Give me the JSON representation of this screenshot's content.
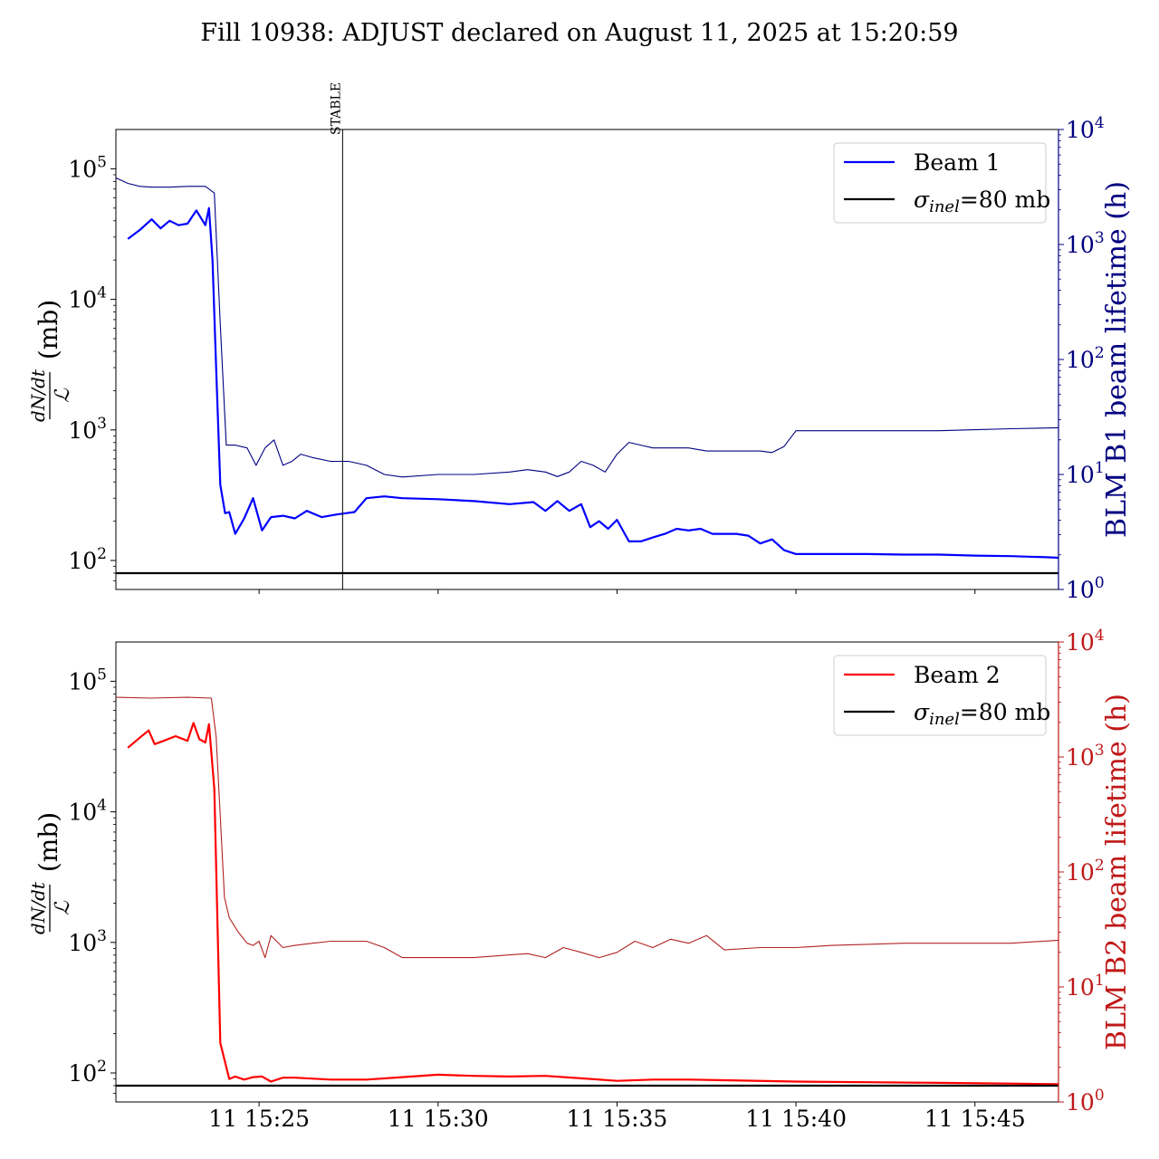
{
  "figure": {
    "title": "Fill 10938: ADJUST declared on August 11, 2025 at 15:20:59"
  },
  "colors": {
    "beam1": "#0000ff",
    "beam1_blm": "#000080",
    "beam2": "#ff0000",
    "beam2_blm": "#b22222",
    "beam2_axis": "#c01818",
    "reference": "#000000"
  },
  "chart_data": [
    {
      "type": "line",
      "panel": "top",
      "xlabel": "",
      "ylabel_left": "dN/dt / L (mb)",
      "ylabel_right": "BLM B1 beam lifetime (h)",
      "x_ticks": [],
      "y_left_scale": "log",
      "y_left_ylim": [
        60,
        200000
      ],
      "y_left_ticks": [
        {
          "value": 100,
          "base": "10",
          "exp": "2"
        },
        {
          "value": 1000,
          "base": "10",
          "exp": "3"
        },
        {
          "value": 10000,
          "base": "10",
          "exp": "4"
        },
        {
          "value": 100000,
          "base": "10",
          "exp": "5"
        }
      ],
      "y_right_scale": "log",
      "y_right_ylim": [
        1,
        10000
      ],
      "y_right_ticks": [
        {
          "value": 1,
          "base": "10",
          "exp": "0"
        },
        {
          "value": 10,
          "base": "10",
          "exp": "1"
        },
        {
          "value": 100,
          "base": "10",
          "exp": "2"
        },
        {
          "value": 1000,
          "base": "10",
          "exp": "3"
        },
        {
          "value": 10000,
          "base": "10",
          "exp": "4"
        }
      ],
      "legend_position": "top-right",
      "legend": [
        {
          "label": "Beam 1",
          "series": "beam1"
        },
        {
          "label_base": "σ",
          "label_sub": "inel",
          "label_rest": "=80 mb",
          "series": "reference"
        }
      ],
      "annotation": {
        "label": "STABLE",
        "x": "2025-08-11 15:27:20"
      },
      "reference_line": {
        "y": 80,
        "label": "σinel=80 mb"
      },
      "series": [
        {
          "id": "beam1",
          "name": "Beam 1",
          "axis": "left",
          "x": [
            "2025-08-11 15:21:20",
            "2025-08-11 15:21:40",
            "2025-08-11 15:22:00",
            "2025-08-11 15:22:15",
            "2025-08-11 15:22:30",
            "2025-08-11 15:22:45",
            "2025-08-11 15:23:00",
            "2025-08-11 15:23:15",
            "2025-08-11 15:23:30",
            "2025-08-11 15:23:36",
            "2025-08-11 15:23:42",
            "2025-08-11 15:23:48",
            "2025-08-11 15:23:55",
            "2025-08-11 15:24:03",
            "2025-08-11 15:24:10",
            "2025-08-11 15:24:20",
            "2025-08-11 15:24:35",
            "2025-08-11 15:24:50",
            "2025-08-11 15:25:05",
            "2025-08-11 15:25:20",
            "2025-08-11 15:25:40",
            "2025-08-11 15:26:00",
            "2025-08-11 15:26:20",
            "2025-08-11 15:26:45",
            "2025-08-11 15:27:10",
            "2025-08-11 15:27:40",
            "2025-08-11 15:28:00",
            "2025-08-11 15:28:30",
            "2025-08-11 15:29:00",
            "2025-08-11 15:30:00",
            "2025-08-11 15:31:00",
            "2025-08-11 15:32:00",
            "2025-08-11 15:32:40",
            "2025-08-11 15:33:00",
            "2025-08-11 15:33:20",
            "2025-08-11 15:33:40",
            "2025-08-11 15:34:00",
            "2025-08-11 15:34:15",
            "2025-08-11 15:34:30",
            "2025-08-11 15:34:45",
            "2025-08-11 15:35:00",
            "2025-08-11 15:35:20",
            "2025-08-11 15:35:40",
            "2025-08-11 15:36:00",
            "2025-08-11 15:36:20",
            "2025-08-11 15:36:40",
            "2025-08-11 15:37:00",
            "2025-08-11 15:37:20",
            "2025-08-11 15:37:40",
            "2025-08-11 15:38:00",
            "2025-08-11 15:38:20",
            "2025-08-11 15:38:40",
            "2025-08-11 15:39:00",
            "2025-08-11 15:39:20",
            "2025-08-11 15:39:40",
            "2025-08-11 15:40:00",
            "2025-08-11 15:41:00",
            "2025-08-11 15:42:00",
            "2025-08-11 15:43:00",
            "2025-08-11 15:44:00",
            "2025-08-11 15:45:00",
            "2025-08-11 15:46:00",
            "2025-08-11 15:47:00",
            "2025-08-11 15:47:20"
          ],
          "y": [
            29000,
            34000,
            41000,
            35000,
            40000,
            37000,
            38000,
            48000,
            37000,
            50000,
            20000,
            3000,
            380,
            230,
            235,
            160,
            210,
            300,
            170,
            215,
            220,
            210,
            240,
            215,
            225,
            235,
            300,
            310,
            300,
            295,
            285,
            270,
            280,
            240,
            285,
            240,
            270,
            180,
            200,
            175,
            205,
            140,
            140,
            150,
            160,
            175,
            170,
            175,
            160,
            160,
            160,
            155,
            135,
            145,
            120,
            112,
            112,
            112,
            111,
            111,
            109,
            108,
            106,
            105
          ]
        },
        {
          "id": "beam1_blm",
          "name": "BLM B1 beam lifetime (h)",
          "axis": "right",
          "x": [
            "2025-08-11 15:21:00",
            "2025-08-11 15:21:20",
            "2025-08-11 15:21:40",
            "2025-08-11 15:22:00",
            "2025-08-11 15:22:30",
            "2025-08-11 15:23:00",
            "2025-08-11 15:23:30",
            "2025-08-11 15:23:45",
            "2025-08-11 15:23:55",
            "2025-08-11 15:24:05",
            "2025-08-11 15:24:20",
            "2025-08-11 15:24:40",
            "2025-08-11 15:24:55",
            "2025-08-11 15:25:10",
            "2025-08-11 15:25:25",
            "2025-08-11 15:25:40",
            "2025-08-11 15:25:55",
            "2025-08-11 15:26:10",
            "2025-08-11 15:26:30",
            "2025-08-11 15:27:00",
            "2025-08-11 15:27:30",
            "2025-08-11 15:28:00",
            "2025-08-11 15:28:30",
            "2025-08-11 15:29:00",
            "2025-08-11 15:30:00",
            "2025-08-11 15:31:00",
            "2025-08-11 15:32:00",
            "2025-08-11 15:32:30",
            "2025-08-11 15:33:00",
            "2025-08-11 15:33:20",
            "2025-08-11 15:33:40",
            "2025-08-11 15:34:00",
            "2025-08-11 15:34:20",
            "2025-08-11 15:34:40",
            "2025-08-11 15:35:00",
            "2025-08-11 15:35:20",
            "2025-08-11 15:35:40",
            "2025-08-11 15:36:00",
            "2025-08-11 15:36:30",
            "2025-08-11 15:37:00",
            "2025-08-11 15:37:30",
            "2025-08-11 15:38:00",
            "2025-08-11 15:38:30",
            "2025-08-11 15:39:00",
            "2025-08-11 15:39:20",
            "2025-08-11 15:39:40",
            "2025-08-11 15:40:00",
            "2025-08-11 15:41:00",
            "2025-08-11 15:42:00",
            "2025-08-11 15:43:00",
            "2025-08-11 15:44:00",
            "2025-08-11 15:45:00",
            "2025-08-11 15:46:00",
            "2025-08-11 15:47:20"
          ],
          "y": [
            3800,
            3400,
            3200,
            3150,
            3150,
            3200,
            3200,
            2800,
            200,
            18,
            18,
            17,
            12,
            17,
            20,
            12,
            13,
            15,
            14,
            13,
            13,
            12,
            10,
            9.5,
            10,
            10,
            10.5,
            11,
            10.5,
            9.6,
            10.5,
            13,
            12,
            10.5,
            15,
            19,
            18,
            17,
            17,
            17,
            16,
            16,
            16,
            16,
            15.5,
            17.5,
            24,
            24,
            24,
            24,
            24,
            24.5,
            25,
            25.5
          ]
        },
        {
          "id": "reference",
          "name": "σinel=80 mb",
          "axis": "left",
          "x": [
            "2025-08-11 15:21:00",
            "2025-08-11 15:47:20"
          ],
          "y": [
            80,
            80
          ]
        }
      ]
    },
    {
      "type": "line",
      "panel": "bottom",
      "xlabel": "",
      "ylabel_left": "dN/dt / L (mb)",
      "ylabel_right": "BLM B2 beam lifetime (h)",
      "x_ticks": [
        "11 15:25",
        "11 15:30",
        "11 15:35",
        "11 15:40",
        "11 15:45"
      ],
      "y_left_scale": "log",
      "y_left_ylim": [
        60,
        200000
      ],
      "y_left_ticks": [
        {
          "value": 100,
          "base": "10",
          "exp": "2"
        },
        {
          "value": 1000,
          "base": "10",
          "exp": "3"
        },
        {
          "value": 10000,
          "base": "10",
          "exp": "4"
        },
        {
          "value": 100000,
          "base": "10",
          "exp": "5"
        }
      ],
      "y_right_scale": "log",
      "y_right_ylim": [
        1,
        10000
      ],
      "y_right_ticks": [
        {
          "value": 1,
          "base": "10",
          "exp": "0"
        },
        {
          "value": 10,
          "base": "10",
          "exp": "1"
        },
        {
          "value": 100,
          "base": "10",
          "exp": "2"
        },
        {
          "value": 1000,
          "base": "10",
          "exp": "3"
        },
        {
          "value": 10000,
          "base": "10",
          "exp": "4"
        }
      ],
      "legend_position": "top-right",
      "legend": [
        {
          "label": "Beam 2",
          "series": "beam2"
        },
        {
          "label_base": "σ",
          "label_sub": "inel",
          "label_rest": "=80 mb",
          "series": "reference"
        }
      ],
      "reference_line": {
        "y": 80,
        "label": "σinel=80 mb"
      },
      "series": [
        {
          "id": "beam2",
          "name": "Beam 2",
          "axis": "left",
          "x": [
            "2025-08-11 15:21:20",
            "2025-08-11 15:21:40",
            "2025-08-11 15:21:55",
            "2025-08-11 15:22:05",
            "2025-08-11 15:22:20",
            "2025-08-11 15:22:40",
            "2025-08-11 15:23:00",
            "2025-08-11 15:23:10",
            "2025-08-11 15:23:20",
            "2025-08-11 15:23:30",
            "2025-08-11 15:23:36",
            "2025-08-11 15:23:45",
            "2025-08-11 15:23:55",
            "2025-08-11 15:24:10",
            "2025-08-11 15:24:20",
            "2025-08-11 15:24:35",
            "2025-08-11 15:24:50",
            "2025-08-11 15:25:05",
            "2025-08-11 15:25:20",
            "2025-08-11 15:25:40",
            "2025-08-11 15:26:00",
            "2025-08-11 15:27:00",
            "2025-08-11 15:28:00",
            "2025-08-11 15:29:00",
            "2025-08-11 15:30:00",
            "2025-08-11 15:31:00",
            "2025-08-11 15:32:00",
            "2025-08-11 15:33:00",
            "2025-08-11 15:34:00",
            "2025-08-11 15:35:00",
            "2025-08-11 15:36:00",
            "2025-08-11 15:37:00",
            "2025-08-11 15:38:00",
            "2025-08-11 15:40:00",
            "2025-08-11 15:42:00",
            "2025-08-11 15:44:00",
            "2025-08-11 15:46:00",
            "2025-08-11 15:47:20"
          ],
          "y": [
            31000,
            37000,
            42000,
            33000,
            35000,
            38000,
            35000,
            48000,
            36000,
            34000,
            47000,
            15000,
            170,
            90,
            94,
            89,
            93,
            94,
            86,
            92,
            92,
            89,
            89,
            93,
            97,
            95,
            94,
            95,
            91,
            87,
            89,
            89,
            88,
            86,
            85,
            84,
            83,
            82
          ]
        },
        {
          "id": "beam2_blm",
          "name": "BLM B2 beam lifetime (h)",
          "axis": "right",
          "x": [
            "2025-08-11 15:21:00",
            "2025-08-11 15:22:00",
            "2025-08-11 15:23:00",
            "2025-08-11 15:23:40",
            "2025-08-11 15:23:48",
            "2025-08-11 15:23:55",
            "2025-08-11 15:24:02",
            "2025-08-11 15:24:10",
            "2025-08-11 15:24:25",
            "2025-08-11 15:24:40",
            "2025-08-11 15:24:50",
            "2025-08-11 15:25:00",
            "2025-08-11 15:25:10",
            "2025-08-11 15:25:20",
            "2025-08-11 15:25:40",
            "2025-08-11 15:26:00",
            "2025-08-11 15:26:30",
            "2025-08-11 15:27:00",
            "2025-08-11 15:28:00",
            "2025-08-11 15:28:30",
            "2025-08-11 15:29:00",
            "2025-08-11 15:30:00",
            "2025-08-11 15:31:00",
            "2025-08-11 15:32:00",
            "2025-08-11 15:32:30",
            "2025-08-11 15:33:00",
            "2025-08-11 15:33:30",
            "2025-08-11 15:34:00",
            "2025-08-11 15:34:30",
            "2025-08-11 15:35:00",
            "2025-08-11 15:35:30",
            "2025-08-11 15:36:00",
            "2025-08-11 15:36:30",
            "2025-08-11 15:37:00",
            "2025-08-11 15:37:30",
            "2025-08-11 15:38:00",
            "2025-08-11 15:39:00",
            "2025-08-11 15:40:00",
            "2025-08-11 15:41:00",
            "2025-08-11 15:42:00",
            "2025-08-11 15:43:00",
            "2025-08-11 15:44:00",
            "2025-08-11 15:45:00",
            "2025-08-11 15:46:00",
            "2025-08-11 15:47:20"
          ],
          "y": [
            3300,
            3250,
            3300,
            3250,
            1500,
            300,
            60,
            40,
            30,
            24,
            23,
            25,
            18,
            28,
            22,
            23,
            24,
            25,
            25,
            22,
            18,
            18,
            18,
            19,
            19.5,
            18,
            22,
            20,
            18,
            20,
            25,
            22,
            26,
            24,
            28,
            21,
            22,
            22,
            23,
            23.5,
            24,
            24,
            24,
            24,
            25.5
          ]
        },
        {
          "id": "reference",
          "name": "σinel=80 mb",
          "axis": "left",
          "x": [
            "2025-08-11 15:21:00",
            "2025-08-11 15:47:20"
          ],
          "y": [
            80,
            80
          ]
        }
      ]
    }
  ]
}
